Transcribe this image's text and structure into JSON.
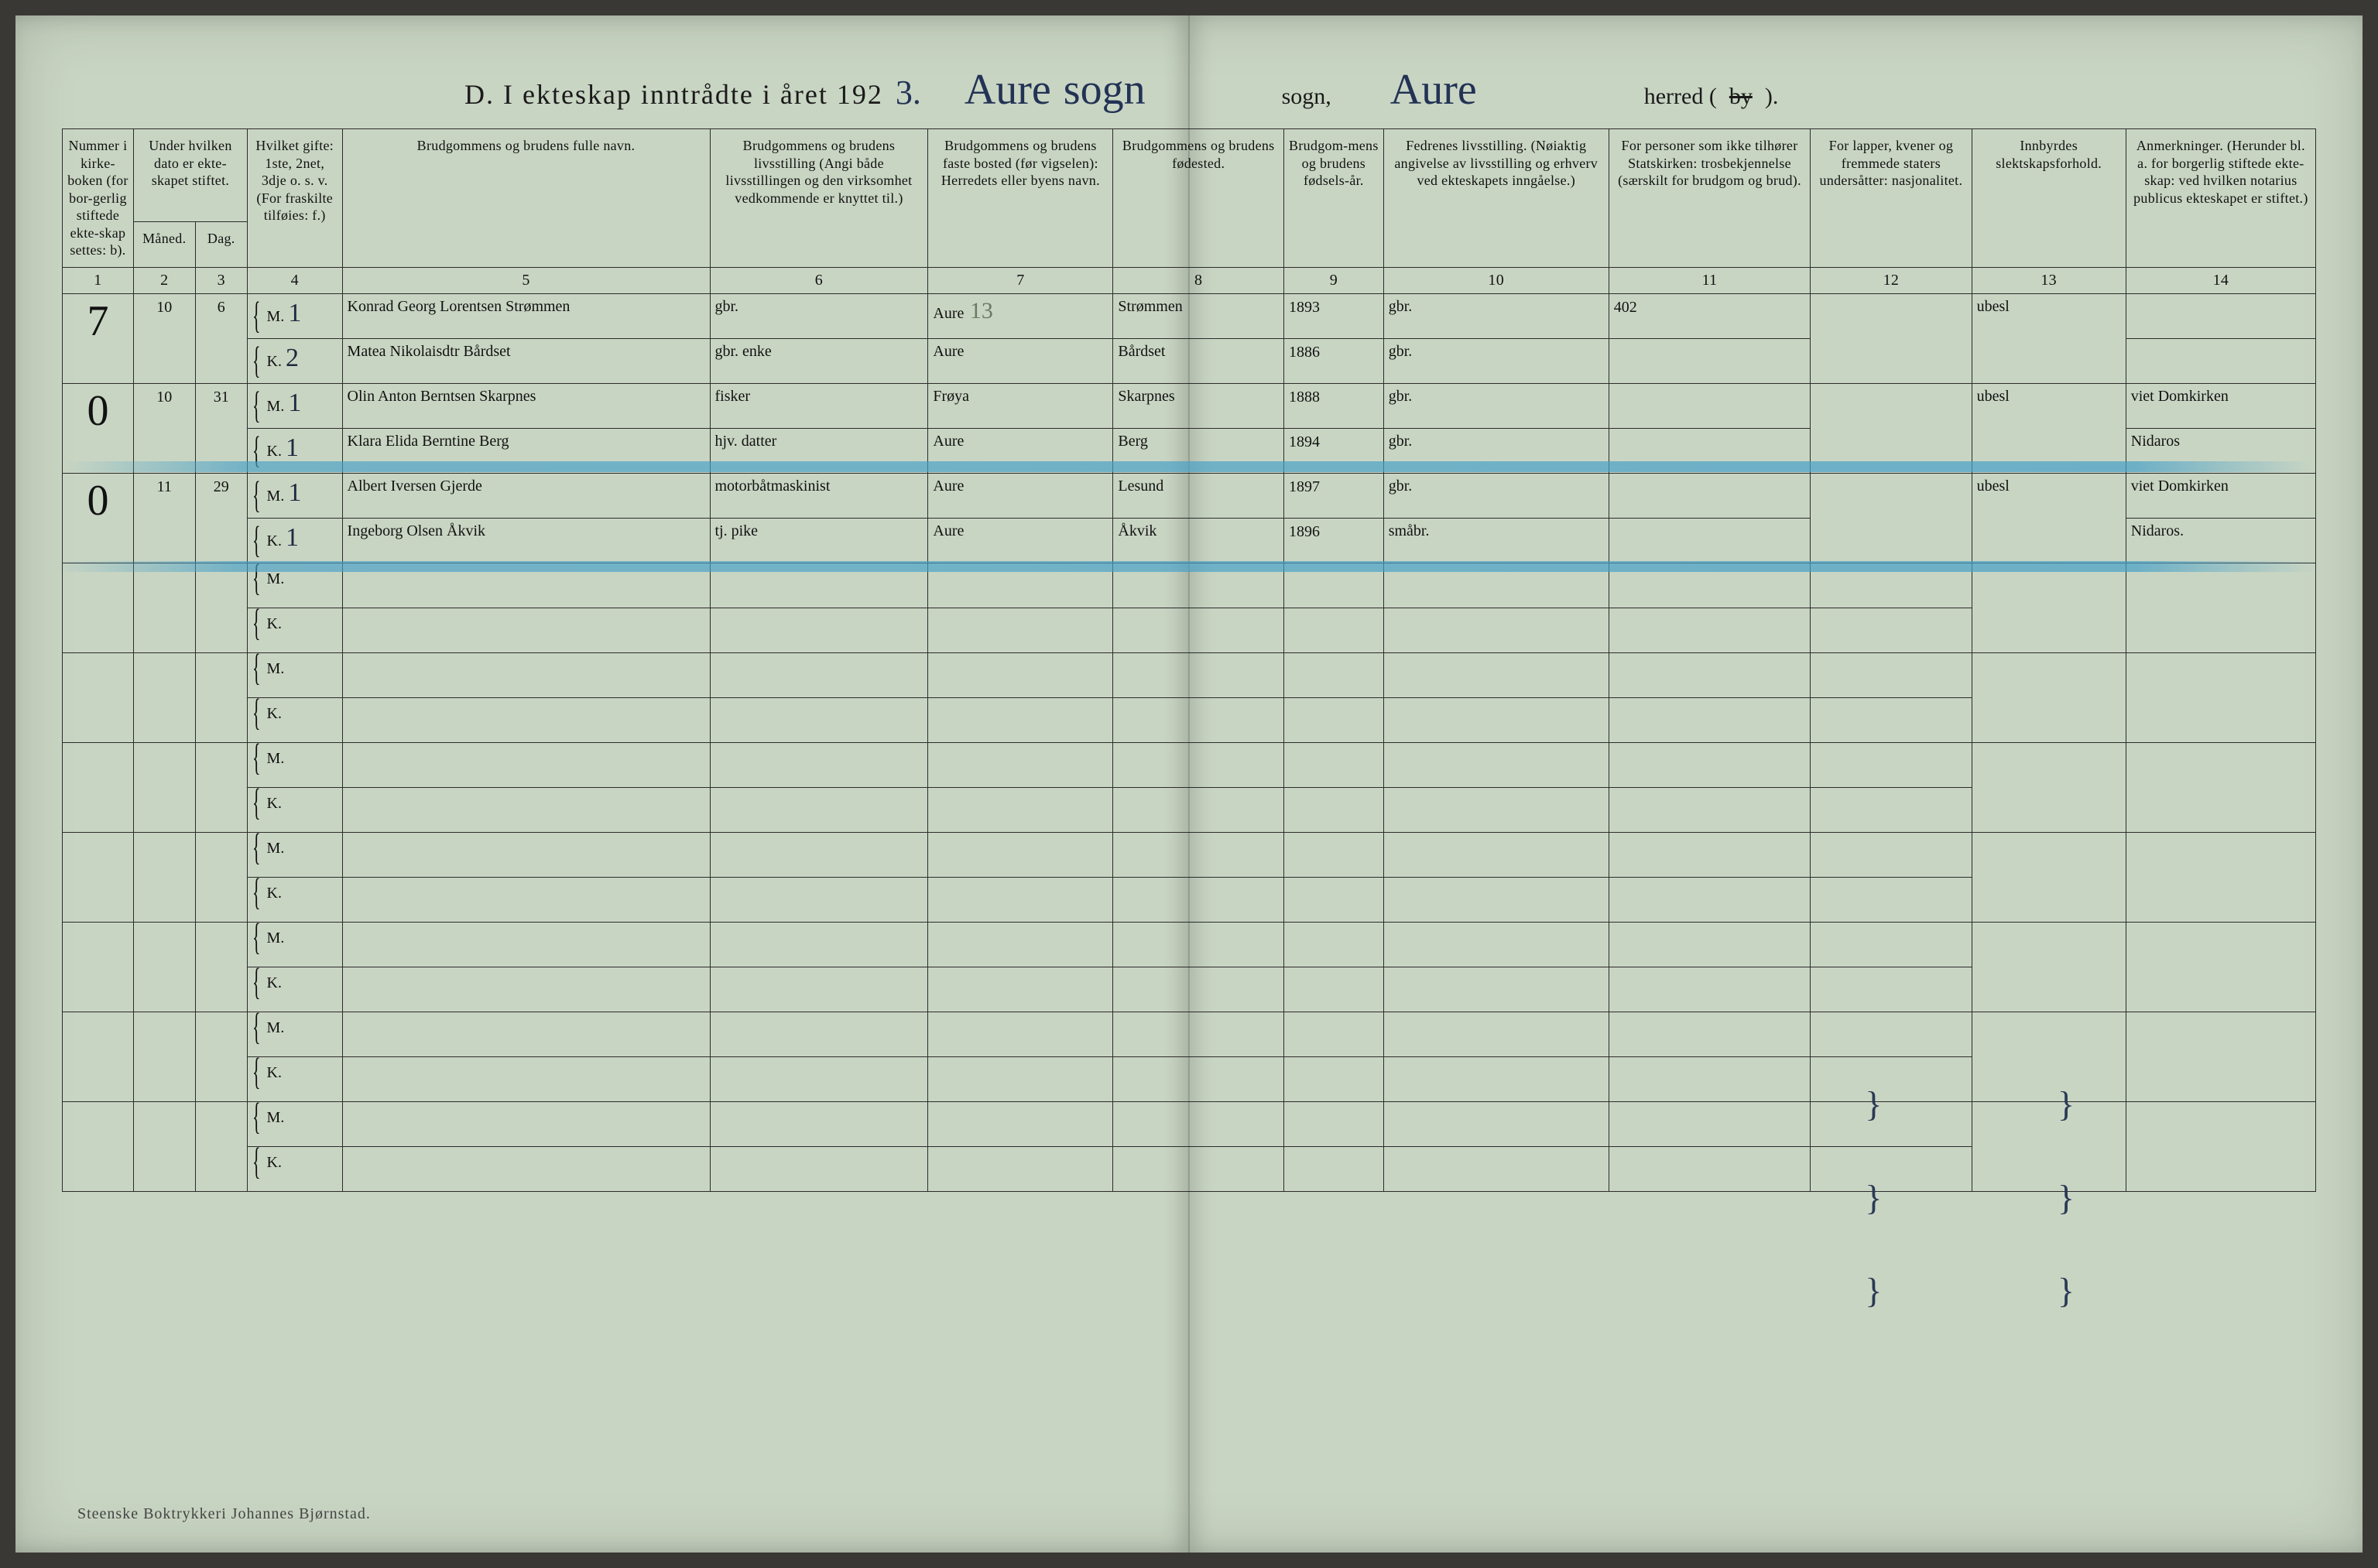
{
  "title": {
    "prefix": "D.  I ekteskap inntrådte i året 192",
    "year_last_digit": "3.",
    "sogn_hand1": "Aure",
    "sogn_hand2": "sogn",
    "sogn_label": "sogn,",
    "herred_hand": "Aure",
    "herred_label_pre": "herred (",
    "herred_label_strike": "by",
    "herred_label_post": ")."
  },
  "columns": {
    "c1": "Nummer i kirke-boken (for bor-gerlig stiftede ekte-skap settes: b).",
    "c2_top": "Under hvilken dato er ekte-skapet stiftet.",
    "c2a": "Måned.",
    "c2b": "Dag.",
    "c4": "Hvilket gifte: 1ste, 2net, 3dje o. s. v. (For fraskilte tilføies: f.)",
    "c5": "Brudgommens og brudens fulle navn.",
    "c6": "Brudgommens og brudens livsstilling (Angi både livsstillingen og den virksomhet vedkommende er knyttet til.)",
    "c7": "Brudgommens og brudens faste bosted (før vigselen): Herredets eller byens navn.",
    "c8": "Brudgommens og brudens fødested.",
    "c9": "Brudgom-mens og brudens fødsels-år.",
    "c10": "Fedrenes livsstilling. (Nøiaktig angivelse av livsstilling og erhverv ved ekteskapets inngåelse.)",
    "c11": "For personer som ikke tilhører Statskirken: trosbekjennelse (særskilt for brudgom og brud).",
    "c12": "For lapper, kvener og fremmede staters undersåtter: nasjonalitet.",
    "c13": "Innbyrdes slektskapsforhold.",
    "c14": "Anmerkninger. (Herunder bl. a. for borgerlig stiftede ekte-skap: ved hvilken notarius publicus ekteskapet er stiftet.)"
  },
  "col_nums": [
    "1",
    "2",
    "3",
    "4",
    "5",
    "6",
    "7",
    "8",
    "9",
    "10",
    "11",
    "12",
    "13",
    "14"
  ],
  "mk_labels": {
    "m": "M.",
    "k": "K."
  },
  "records": [
    {
      "num": "7",
      "month": "10",
      "day": "6",
      "m": {
        "gifte": "1",
        "name": "Konrad Georg Lorentsen Strømmen",
        "occ": "gbr.",
        "bosted": "Aure",
        "fodested": "Strømmen",
        "aar": "1893",
        "far": "gbr.",
        "c11": "402",
        "c12": "",
        "c13": "ubesl",
        "c14": ""
      },
      "k": {
        "gifte": "2",
        "name": "Matea Nikolaisdtr Bårdset",
        "occ": "gbr. enke",
        "bosted": "Aure",
        "fodested": "Bårdset",
        "aar": "1886",
        "far": "gbr.",
        "c11": "",
        "c12": "",
        "c13": "",
        "c14": ""
      },
      "c7_note": "13"
    },
    {
      "num": "0",
      "month": "10",
      "day": "31",
      "m": {
        "gifte": "1",
        "name": "Olin Anton Berntsen Skarpnes",
        "occ": "fisker",
        "bosted": "Frøya",
        "fodested": "Skarpnes",
        "aar": "1888",
        "far": "gbr.",
        "c11": "",
        "c12": "",
        "c13": "ubesl",
        "c14": "viet Domkirken"
      },
      "k": {
        "gifte": "1",
        "name": "Klara Elida Berntine Berg",
        "occ": "hjv. datter",
        "bosted": "Aure",
        "fodested": "Berg",
        "aar": "1894",
        "far": "gbr.",
        "c11": "",
        "c12": "",
        "c13": "",
        "c14": "Nidaros"
      }
    },
    {
      "num": "0",
      "month": "11",
      "day": "29",
      "m": {
        "gifte": "1",
        "name": "Albert Iversen Gjerde",
        "occ": "motorbåtmaskinist",
        "bosted": "Aure",
        "fodested": "Lesund",
        "aar": "1897",
        "far": "gbr.",
        "c11": "",
        "c12": "",
        "c13": "ubesl",
        "c14": "viet Domkirken"
      },
      "k": {
        "gifte": "1",
        "name": "Ingeborg Olsen Åkvik",
        "occ": "tj. pike",
        "bosted": "Aure",
        "fodested": "Åkvik",
        "aar": "1896",
        "far": "småbr.",
        "c11": "",
        "c12": "",
        "c13": "",
        "c14": "Nidaros."
      }
    }
  ],
  "empty_row_count": 7,
  "footer": "Steenske Boktrykkeri Johannes Bjørnstad.",
  "colors": {
    "paper": "#c9d5c3",
    "ink": "#111111",
    "hand_ink": "#1d2a3f",
    "blue_crayon": "#46a0c8",
    "rule": "#2b2b2b"
  },
  "strokes": [
    {
      "top_pct": 29.0,
      "left_pct": 2.0,
      "width_pct": 96.0
    },
    {
      "top_pct": 35.5,
      "left_pct": 1.6,
      "width_pct": 96.5
    }
  ],
  "ticks": [
    {
      "top_pct": 69.5,
      "left_pct": 78.8,
      "text": "}"
    },
    {
      "top_pct": 75.6,
      "left_pct": 78.8,
      "text": "}"
    },
    {
      "top_pct": 81.6,
      "left_pct": 78.8,
      "text": "}"
    },
    {
      "top_pct": 69.5,
      "left_pct": 87.0,
      "text": "}"
    },
    {
      "top_pct": 75.6,
      "left_pct": 87.0,
      "text": "}"
    },
    {
      "top_pct": 81.6,
      "left_pct": 87.0,
      "text": "}"
    }
  ]
}
